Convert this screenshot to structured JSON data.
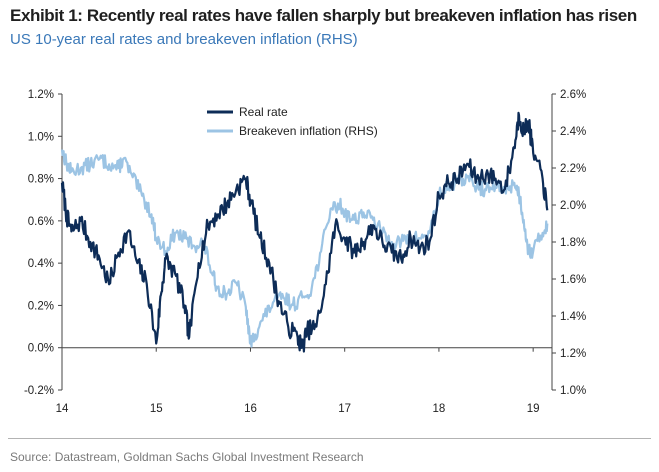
{
  "title": "Exhibit 1: Recently real rates have fallen sharply but breakeven inflation has risen",
  "subtitle": "US 10-year real rates and breakeven inflation (RHS)",
  "source": "Source: Datastream, Goldman Sachs Global Investment Research",
  "colors": {
    "real_rate": "#0d2c57",
    "breakeven": "#9cc4e4",
    "axis": "#444444",
    "text": "#222222"
  },
  "chart_data": {
    "type": "line",
    "x_unit": "year (decimal)",
    "xlim": [
      2014.0,
      2019.2
    ],
    "xticks": [
      {
        "value": 2014,
        "label": "14"
      },
      {
        "value": 2015,
        "label": "15"
      },
      {
        "value": 2016,
        "label": "16"
      },
      {
        "value": 2017,
        "label": "17"
      },
      {
        "value": 2018,
        "label": "18"
      },
      {
        "value": 2019,
        "label": "19"
      }
    ],
    "y_left": {
      "lim": [
        -0.2,
        1.2
      ],
      "ticks": [
        -0.2,
        0.0,
        0.2,
        0.4,
        0.6,
        0.8,
        1.0,
        1.2
      ],
      "tick_labels": [
        "-0.2%",
        "0.0%",
        "0.2%",
        "0.4%",
        "0.6%",
        "0.8%",
        "1.0%",
        "1.2%"
      ]
    },
    "y_right": {
      "lim": [
        1.0,
        2.6
      ],
      "ticks": [
        1.0,
        1.2,
        1.4,
        1.6,
        1.8,
        2.0,
        2.2,
        2.4,
        2.6
      ],
      "tick_labels": [
        "1.0%",
        "1.2%",
        "1.4%",
        "1.6%",
        "1.8%",
        "2.0%",
        "2.2%",
        "2.4%",
        "2.6%"
      ]
    },
    "legend": {
      "placement": "top-left"
    },
    "grid": false,
    "series": [
      {
        "name": "Real rate",
        "axis": "left",
        "x": [
          2014.0,
          2014.05,
          2014.1,
          2014.2,
          2014.3,
          2014.4,
          2014.5,
          2014.6,
          2014.7,
          2014.8,
          2014.9,
          2015.0,
          2015.05,
          2015.1,
          2015.2,
          2015.3,
          2015.35,
          2015.45,
          2015.55,
          2015.65,
          2015.75,
          2015.85,
          2015.95,
          2016.0,
          2016.1,
          2016.2,
          2016.3,
          2016.4,
          2016.5,
          2016.55,
          2016.6,
          2016.7,
          2016.8,
          2016.9,
          2017.0,
          2017.1,
          2017.2,
          2017.3,
          2017.4,
          2017.5,
          2017.6,
          2017.7,
          2017.8,
          2017.9,
          2018.0,
          2018.1,
          2018.2,
          2018.3,
          2018.4,
          2018.5,
          2018.6,
          2018.7,
          2018.8,
          2018.85,
          2018.9,
          2018.95,
          2019.0,
          2019.1,
          2019.15
        ],
        "values": [
          0.78,
          0.62,
          0.55,
          0.6,
          0.5,
          0.42,
          0.3,
          0.45,
          0.55,
          0.4,
          0.3,
          0.02,
          0.25,
          0.42,
          0.35,
          0.2,
          0.05,
          0.4,
          0.58,
          0.63,
          0.68,
          0.75,
          0.8,
          0.7,
          0.52,
          0.4,
          0.22,
          0.1,
          0.05,
          0.0,
          0.08,
          0.1,
          0.3,
          0.58,
          0.52,
          0.45,
          0.5,
          0.58,
          0.5,
          0.45,
          0.42,
          0.52,
          0.47,
          0.5,
          0.72,
          0.78,
          0.8,
          0.87,
          0.8,
          0.82,
          0.8,
          0.75,
          0.95,
          1.1,
          1.02,
          1.07,
          0.92,
          0.8,
          0.65
        ]
      },
      {
        "name": "Breakeven inflation (RHS)",
        "axis": "right",
        "x": [
          2014.0,
          2014.05,
          2014.1,
          2014.2,
          2014.3,
          2014.4,
          2014.5,
          2014.6,
          2014.65,
          2014.75,
          2014.85,
          2014.95,
          2015.0,
          2015.1,
          2015.2,
          2015.3,
          2015.4,
          2015.5,
          2015.6,
          2015.65,
          2015.75,
          2015.85,
          2015.95,
          2016.0,
          2016.05,
          2016.15,
          2016.25,
          2016.35,
          2016.45,
          2016.55,
          2016.65,
          2016.75,
          2016.85,
          2016.95,
          2017.0,
          2017.1,
          2017.2,
          2017.3,
          2017.4,
          2017.5,
          2017.6,
          2017.7,
          2017.8,
          2017.9,
          2018.0,
          2018.1,
          2018.2,
          2018.3,
          2018.4,
          2018.5,
          2018.6,
          2018.7,
          2018.8,
          2018.85,
          2018.9,
          2018.95,
          2019.0,
          2019.1,
          2019.15
        ],
        "values": [
          2.3,
          2.22,
          2.18,
          2.2,
          2.22,
          2.25,
          2.22,
          2.2,
          2.25,
          2.15,
          2.05,
          1.95,
          1.82,
          1.75,
          1.85,
          1.82,
          1.78,
          1.8,
          1.62,
          1.55,
          1.52,
          1.58,
          1.45,
          1.25,
          1.3,
          1.4,
          1.48,
          1.5,
          1.46,
          1.5,
          1.55,
          1.75,
          1.98,
          2.0,
          1.96,
          1.92,
          1.96,
          1.92,
          1.85,
          1.8,
          1.8,
          1.82,
          1.82,
          1.85,
          2.05,
          2.1,
          2.12,
          2.15,
          2.1,
          2.08,
          2.1,
          2.08,
          2.12,
          2.06,
          1.92,
          1.75,
          1.75,
          1.85,
          1.9
        ]
      }
    ]
  }
}
